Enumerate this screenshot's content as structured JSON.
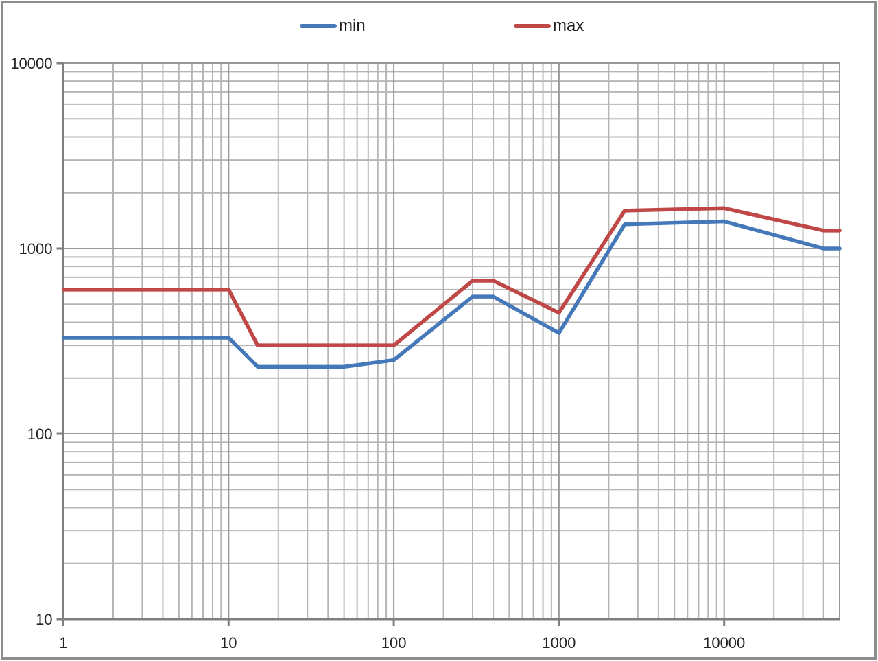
{
  "chart_data": {
    "type": "line",
    "title": "",
    "legend_position": "top-center",
    "grid": "log-log major and minor gridlines on",
    "x_axis": {
      "scale": "log",
      "min": 1,
      "max": 50000,
      "ticks": [
        1,
        10,
        100,
        1000,
        10000
      ]
    },
    "y_axis": {
      "scale": "log",
      "min": 10,
      "max": 10000,
      "ticks": [
        10,
        100,
        1000,
        10000
      ]
    },
    "series": [
      {
        "name": "min",
        "color": "#4478b9",
        "points": [
          [
            1,
            330
          ],
          [
            10,
            330
          ],
          [
            15,
            230
          ],
          [
            50,
            230
          ],
          [
            100,
            250
          ],
          [
            300,
            550
          ],
          [
            400,
            550
          ],
          [
            1000,
            350
          ],
          [
            2500,
            1350
          ],
          [
            10000,
            1400
          ],
          [
            40000,
            1000
          ],
          [
            50000,
            1000
          ]
        ]
      },
      {
        "name": "max",
        "color": "#bf4846",
        "points": [
          [
            1,
            600
          ],
          [
            10,
            600
          ],
          [
            15,
            300
          ],
          [
            100,
            300
          ],
          [
            300,
            670
          ],
          [
            400,
            670
          ],
          [
            1000,
            450
          ],
          [
            2500,
            1600
          ],
          [
            10000,
            1650
          ],
          [
            40000,
            1250
          ],
          [
            50000,
            1250
          ]
        ]
      }
    ]
  },
  "colors": {
    "grid_minor": "#b7b4b4",
    "grid_major": "#9b9898",
    "axis": "#7f7f7f",
    "border": "#8d8d8d",
    "text": "#242424"
  }
}
